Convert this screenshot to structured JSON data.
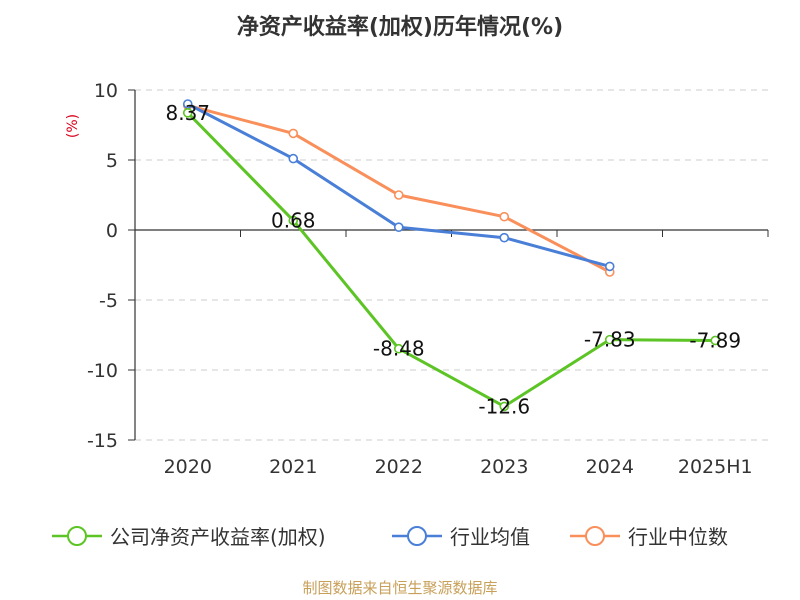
{
  "chart_data": {
    "type": "line",
    "title": "净资产收益率(加权)历年情况(%)",
    "ylabel": "(%)",
    "categories": [
      "2020",
      "2021",
      "2022",
      "2023",
      "2024",
      "2025H1"
    ],
    "yticks": [
      "10",
      "5",
      "0",
      "-5",
      "-10",
      "-15"
    ],
    "ylim": [
      -15,
      10
    ],
    "grid": true,
    "legend_position": "bottom",
    "series": [
      {
        "name": "公司净资产收益率(加权)",
        "color": "#5cc424",
        "values": [
          8.37,
          0.68,
          -8.48,
          -12.6,
          -7.83,
          -7.89
        ],
        "labels": [
          "8.37",
          "0.68",
          "-8.48",
          "-12.6",
          "-7.83",
          "-7.89"
        ]
      },
      {
        "name": "行业均值",
        "color": "#4a7fd8",
        "values": [
          9.0,
          5.1,
          0.2,
          -0.55,
          -2.6,
          null
        ]
      },
      {
        "name": "行业中位数",
        "color": "#f98f5a",
        "values": [
          8.9,
          6.9,
          2.5,
          0.95,
          -3.0,
          null
        ]
      }
    ]
  },
  "source": "制图数据来自恒生聚源数据库"
}
